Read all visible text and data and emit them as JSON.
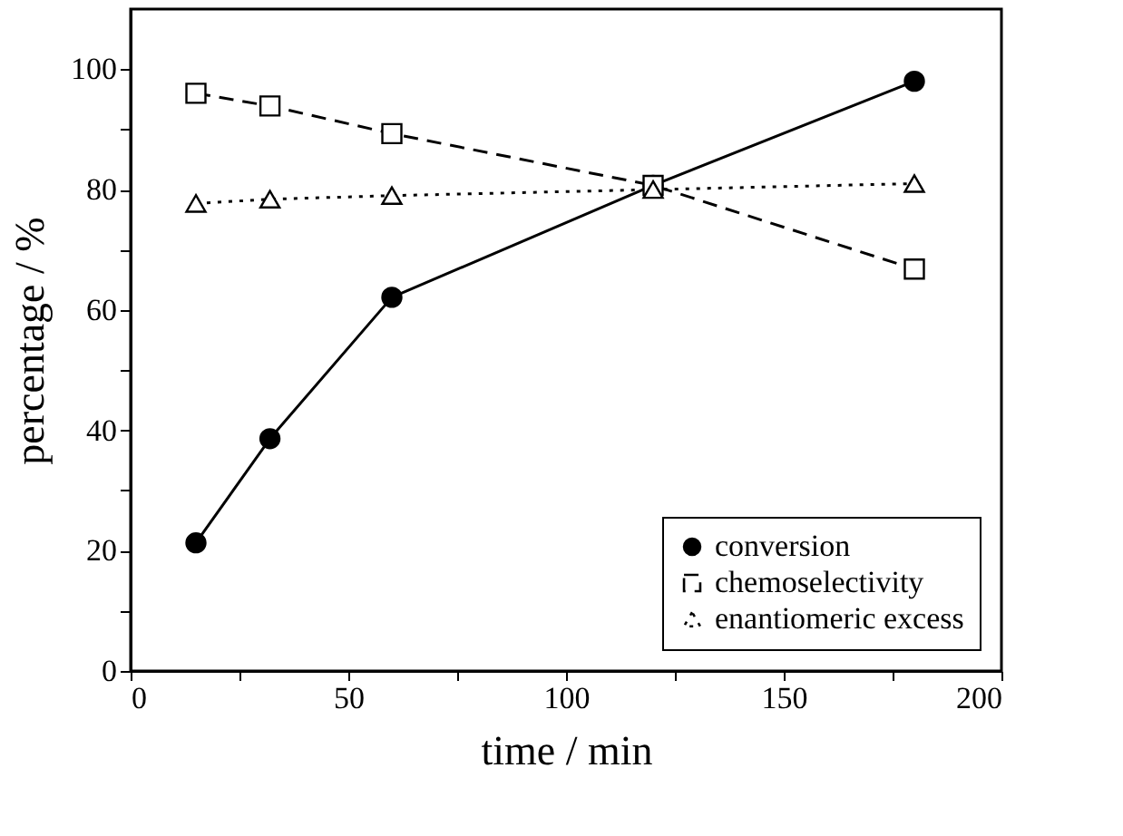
{
  "chart_data": {
    "type": "line",
    "xlabel": "time / min",
    "ylabel": "percentage / %",
    "x": [
      15,
      32,
      60,
      120,
      180
    ],
    "series": [
      {
        "name": "conversion",
        "color": "#000000",
        "marker": "circle",
        "line_style": "solid",
        "values": [
          21.3,
          38.6,
          62.1,
          80.7,
          98
        ]
      },
      {
        "name": "chemoselectivity",
        "color": "#000000",
        "marker": "square",
        "line_style": "dashed",
        "values": [
          96,
          93.9,
          89.3,
          80.7,
          66.8
        ]
      },
      {
        "name": "enantiomeric excess",
        "color": "#000000",
        "marker": "triangle",
        "line_style": "dotted",
        "values": [
          77.7,
          78.4,
          79.0,
          80.0,
          81.0
        ]
      }
    ],
    "xlim": [
      0,
      200
    ],
    "xticks": [
      0,
      {
        "value": 25,
        "label": null
      },
      50,
      {
        "value": 75,
        "label": null
      },
      100,
      {
        "value": 125,
        "label": null
      },
      150,
      {
        "value": 175,
        "label": null
      },
      200
    ],
    "ylim": [
      0,
      110
    ],
    "yticks": [
      0,
      {
        "value": 10,
        "label": null
      },
      20,
      {
        "value": 30,
        "label": null
      },
      40,
      {
        "value": 50,
        "label": null
      },
      60,
      {
        "value": 70,
        "label": null
      },
      80,
      {
        "value": 90,
        "label": null
      },
      100
    ],
    "grid": false,
    "legend": "bottom right"
  }
}
